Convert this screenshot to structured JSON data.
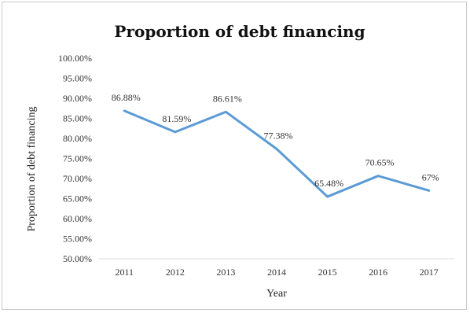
{
  "chart_data": {
    "type": "line",
    "title": "Proportion of debt financing",
    "xlabel": "Year",
    "ylabel": "Proportion of debt financing",
    "categories": [
      "2011",
      "2012",
      "2013",
      "2014",
      "2015",
      "2016",
      "2017"
    ],
    "values": [
      86.88,
      81.59,
      86.61,
      77.38,
      65.48,
      70.65,
      67
    ],
    "data_labels": [
      "86.88%",
      "81.59%",
      "86.61%",
      "77.38%",
      "65.48%",
      "70.65%",
      "67%"
    ],
    "ylim": [
      50,
      100
    ],
    "y_ticks": [
      "100.00%",
      "95.00%",
      "90.00%",
      "85.00%",
      "80.00%",
      "75.00%",
      "70.00%",
      "65.00%",
      "60.00%",
      "55.00%",
      "50.00%"
    ],
    "grid": false,
    "legend": "none",
    "line_color": "#5b9bd5"
  }
}
